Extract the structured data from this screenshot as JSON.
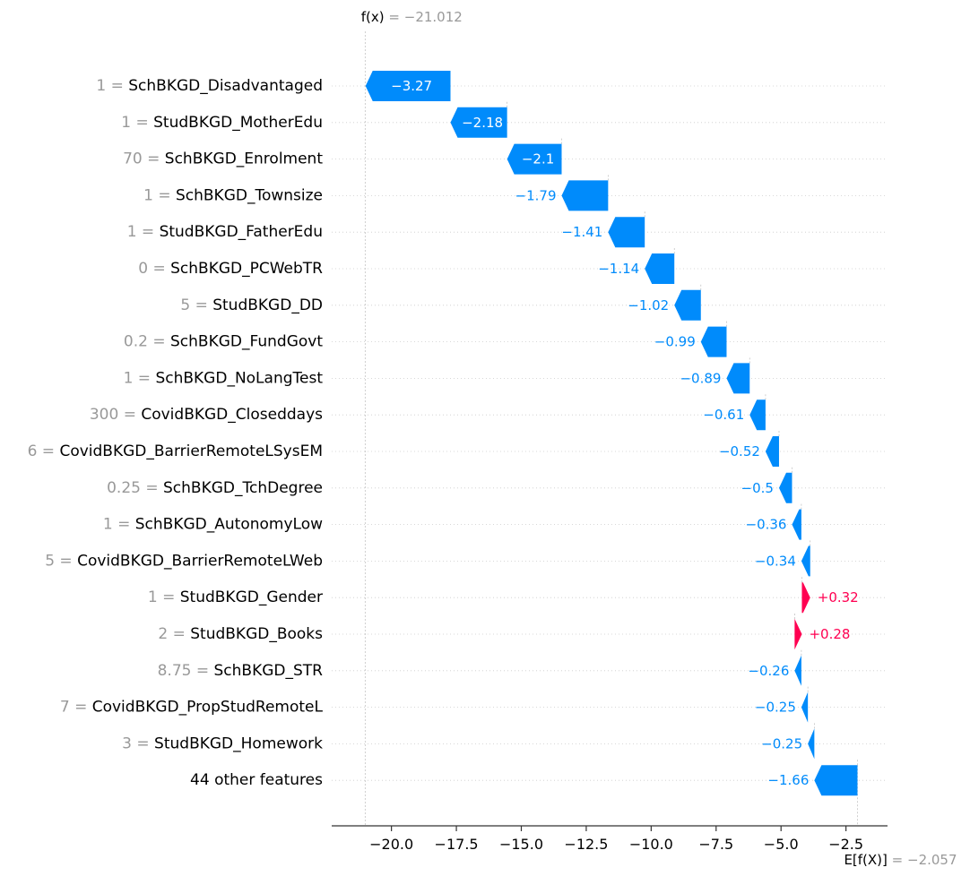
{
  "chart_data": {
    "type": "waterfall",
    "fx_label": "f(x) = −21.012",
    "fx_value": -21.012,
    "base_label": "E[f(X)] = −2.057",
    "base_value": -2.057,
    "xlim": [
      -22.3,
      -0.9
    ],
    "xticks": [
      -20.0,
      -17.5,
      -15.0,
      -12.5,
      -10.0,
      -7.5,
      -5.0,
      -2.5
    ],
    "xtick_labels": [
      "−20.0",
      "−17.5",
      "−15.0",
      "−12.5",
      "−10.0",
      "−7.5",
      "−5.0",
      "−2.5"
    ],
    "features": [
      {
        "value": "1",
        "name": "SchBKGD_Disadvantaged",
        "shap": -3.27,
        "text": "−3.27"
      },
      {
        "value": "1",
        "name": "StudBKGD_MotherEdu",
        "shap": -2.18,
        "text": "−2.18"
      },
      {
        "value": "70",
        "name": "SchBKGD_Enrolment",
        "shap": -2.1,
        "text": "−2.1"
      },
      {
        "value": "1",
        "name": "SchBKGD_Townsize",
        "shap": -1.79,
        "text": "−1.79"
      },
      {
        "value": "1",
        "name": "StudBKGD_FatherEdu",
        "shap": -1.41,
        "text": "−1.41"
      },
      {
        "value": "0",
        "name": "SchBKGD_PCWebTR",
        "shap": -1.14,
        "text": "−1.14"
      },
      {
        "value": "5",
        "name": "StudBKGD_DD",
        "shap": -1.02,
        "text": "−1.02"
      },
      {
        "value": "0.2",
        "name": "SchBKGD_FundGovt",
        "shap": -0.99,
        "text": "−0.99"
      },
      {
        "value": "1",
        "name": "SchBKGD_NoLangTest",
        "shap": -0.89,
        "text": "−0.89"
      },
      {
        "value": "300",
        "name": "CovidBKGD_Closeddays",
        "shap": -0.61,
        "text": "−0.61"
      },
      {
        "value": "6",
        "name": "CovidBKGD_BarrierRemoteLSysEM",
        "shap": -0.52,
        "text": "−0.52"
      },
      {
        "value": "0.25",
        "name": "SchBKGD_TchDegree",
        "shap": -0.5,
        "text": "−0.5"
      },
      {
        "value": "1",
        "name": "SchBKGD_AutonomyLow",
        "shap": -0.36,
        "text": "−0.36"
      },
      {
        "value": "5",
        "name": "CovidBKGD_BarrierRemoteLWeb",
        "shap": -0.34,
        "text": "−0.34"
      },
      {
        "value": "1",
        "name": "StudBKGD_Gender",
        "shap": 0.32,
        "text": "+0.32"
      },
      {
        "value": "2",
        "name": "StudBKGD_Books",
        "shap": 0.28,
        "text": "+0.28"
      },
      {
        "value": "8.75",
        "name": "SchBKGD_STR",
        "shap": -0.26,
        "text": "−0.26"
      },
      {
        "value": "7",
        "name": "CovidBKGD_PropStudRemoteL",
        "shap": -0.25,
        "text": "−0.25"
      },
      {
        "value": "3",
        "name": "StudBKGD_Homework",
        "shap": -0.25,
        "text": "−0.25"
      },
      {
        "value": "",
        "name": "44 other features",
        "shap": -1.66,
        "text": "−1.66"
      }
    ],
    "colors": {
      "negative": "#008bfb",
      "positive": "#ff0051",
      "gridline": "#cccccc",
      "axis": "#333333",
      "label_gray": "#999999"
    }
  }
}
